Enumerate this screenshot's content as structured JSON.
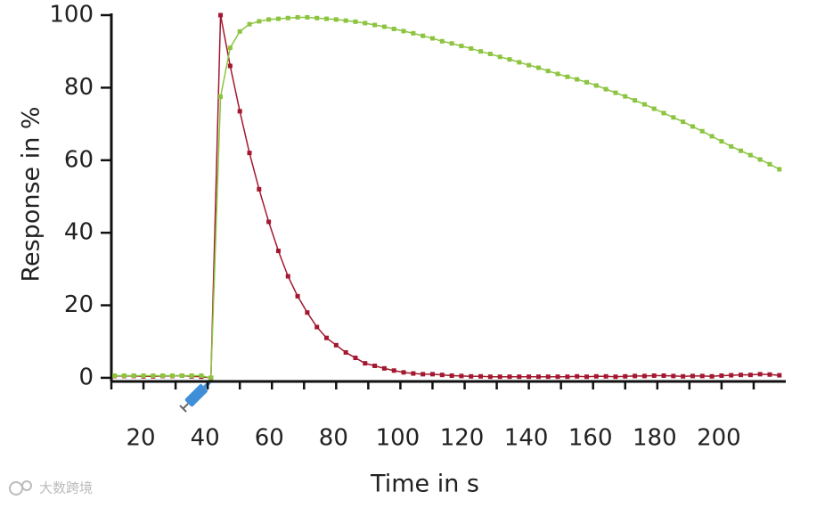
{
  "chart_data": {
    "type": "line",
    "x_label": "Time in s",
    "y_label": "Response in %",
    "watermark": "大数跨境",
    "x": [
      11,
      14,
      17,
      20,
      23,
      26,
      29,
      32,
      35,
      38,
      41,
      44,
      47,
      50,
      53,
      56,
      59,
      62,
      65,
      68,
      71,
      74,
      77,
      80,
      83,
      86,
      89,
      92,
      95,
      98,
      101,
      104,
      107,
      110,
      113,
      116,
      119,
      122,
      125,
      128,
      131,
      134,
      137,
      140,
      143,
      146,
      149,
      152,
      155,
      158,
      161,
      164,
      167,
      170,
      173,
      176,
      179,
      182,
      185,
      188,
      191,
      194,
      197,
      200,
      203,
      206,
      209,
      212,
      215,
      218
    ],
    "series": [
      {
        "name": "red",
        "color": "#a3182f",
        "values": [
          0.5,
          0.5,
          0.5,
          0.4,
          0.4,
          0.5,
          0.5,
          0.6,
          0.4,
          0.3,
          0,
          100,
          86,
          73.5,
          62,
          52,
          43,
          35,
          28,
          22.5,
          18,
          14,
          11,
          9,
          7,
          5.5,
          4,
          3.3,
          2.6,
          2,
          1.5,
          1.2,
          1,
          1,
          0.8,
          0.6,
          0.5,
          0.4,
          0.4,
          0.3,
          0.3,
          0.3,
          0.3,
          0.3,
          0.3,
          0.3,
          0.3,
          0.3,
          0.4,
          0.3,
          0.4,
          0.4,
          0.3,
          0.4,
          0.5,
          0.5,
          0.6,
          0.6,
          0.5,
          0.4,
          0.5,
          0.5,
          0.4,
          0.6,
          0.7,
          0.8,
          0.8,
          1,
          0.9,
          0.7
        ]
      },
      {
        "name": "green",
        "color": "#8cc440",
        "values": [
          0.6,
          0.6,
          0.6,
          0.6,
          0.6,
          0.6,
          0.6,
          0.6,
          0.6,
          0.6,
          0,
          77.5,
          91,
          95.5,
          97.5,
          98.3,
          98.8,
          99,
          99.2,
          99.4,
          99.4,
          99.2,
          99,
          98.8,
          98.5,
          98.2,
          97.8,
          97.3,
          96.8,
          96.2,
          95.6,
          95,
          94.3,
          93.6,
          92.8,
          92.2,
          91.5,
          90.8,
          90,
          89.3,
          88.5,
          87.8,
          87,
          86.2,
          85.5,
          84.6,
          83.8,
          83,
          82.3,
          81.5,
          80.6,
          79.6,
          78.6,
          77.6,
          76.5,
          75.4,
          74.2,
          73,
          71.8,
          70.6,
          69.3,
          68,
          66.6,
          65.2,
          63.8,
          62.6,
          61.4,
          60.2,
          58.9,
          57.5
        ]
      }
    ],
    "xlim": [
      10,
      220
    ],
    "ylim": [
      -1,
      100
    ],
    "xticks": [
      20,
      40,
      60,
      80,
      100,
      120,
      140,
      160,
      180,
      200
    ],
    "xminor_ticks": [
      10,
      20,
      30,
      40,
      50,
      60,
      70,
      80,
      90,
      100,
      110,
      120,
      130,
      140,
      150,
      160,
      170,
      180,
      190,
      200,
      210
    ],
    "yticks": [
      0,
      20,
      40,
      60,
      80,
      100
    ],
    "grid": false
  }
}
